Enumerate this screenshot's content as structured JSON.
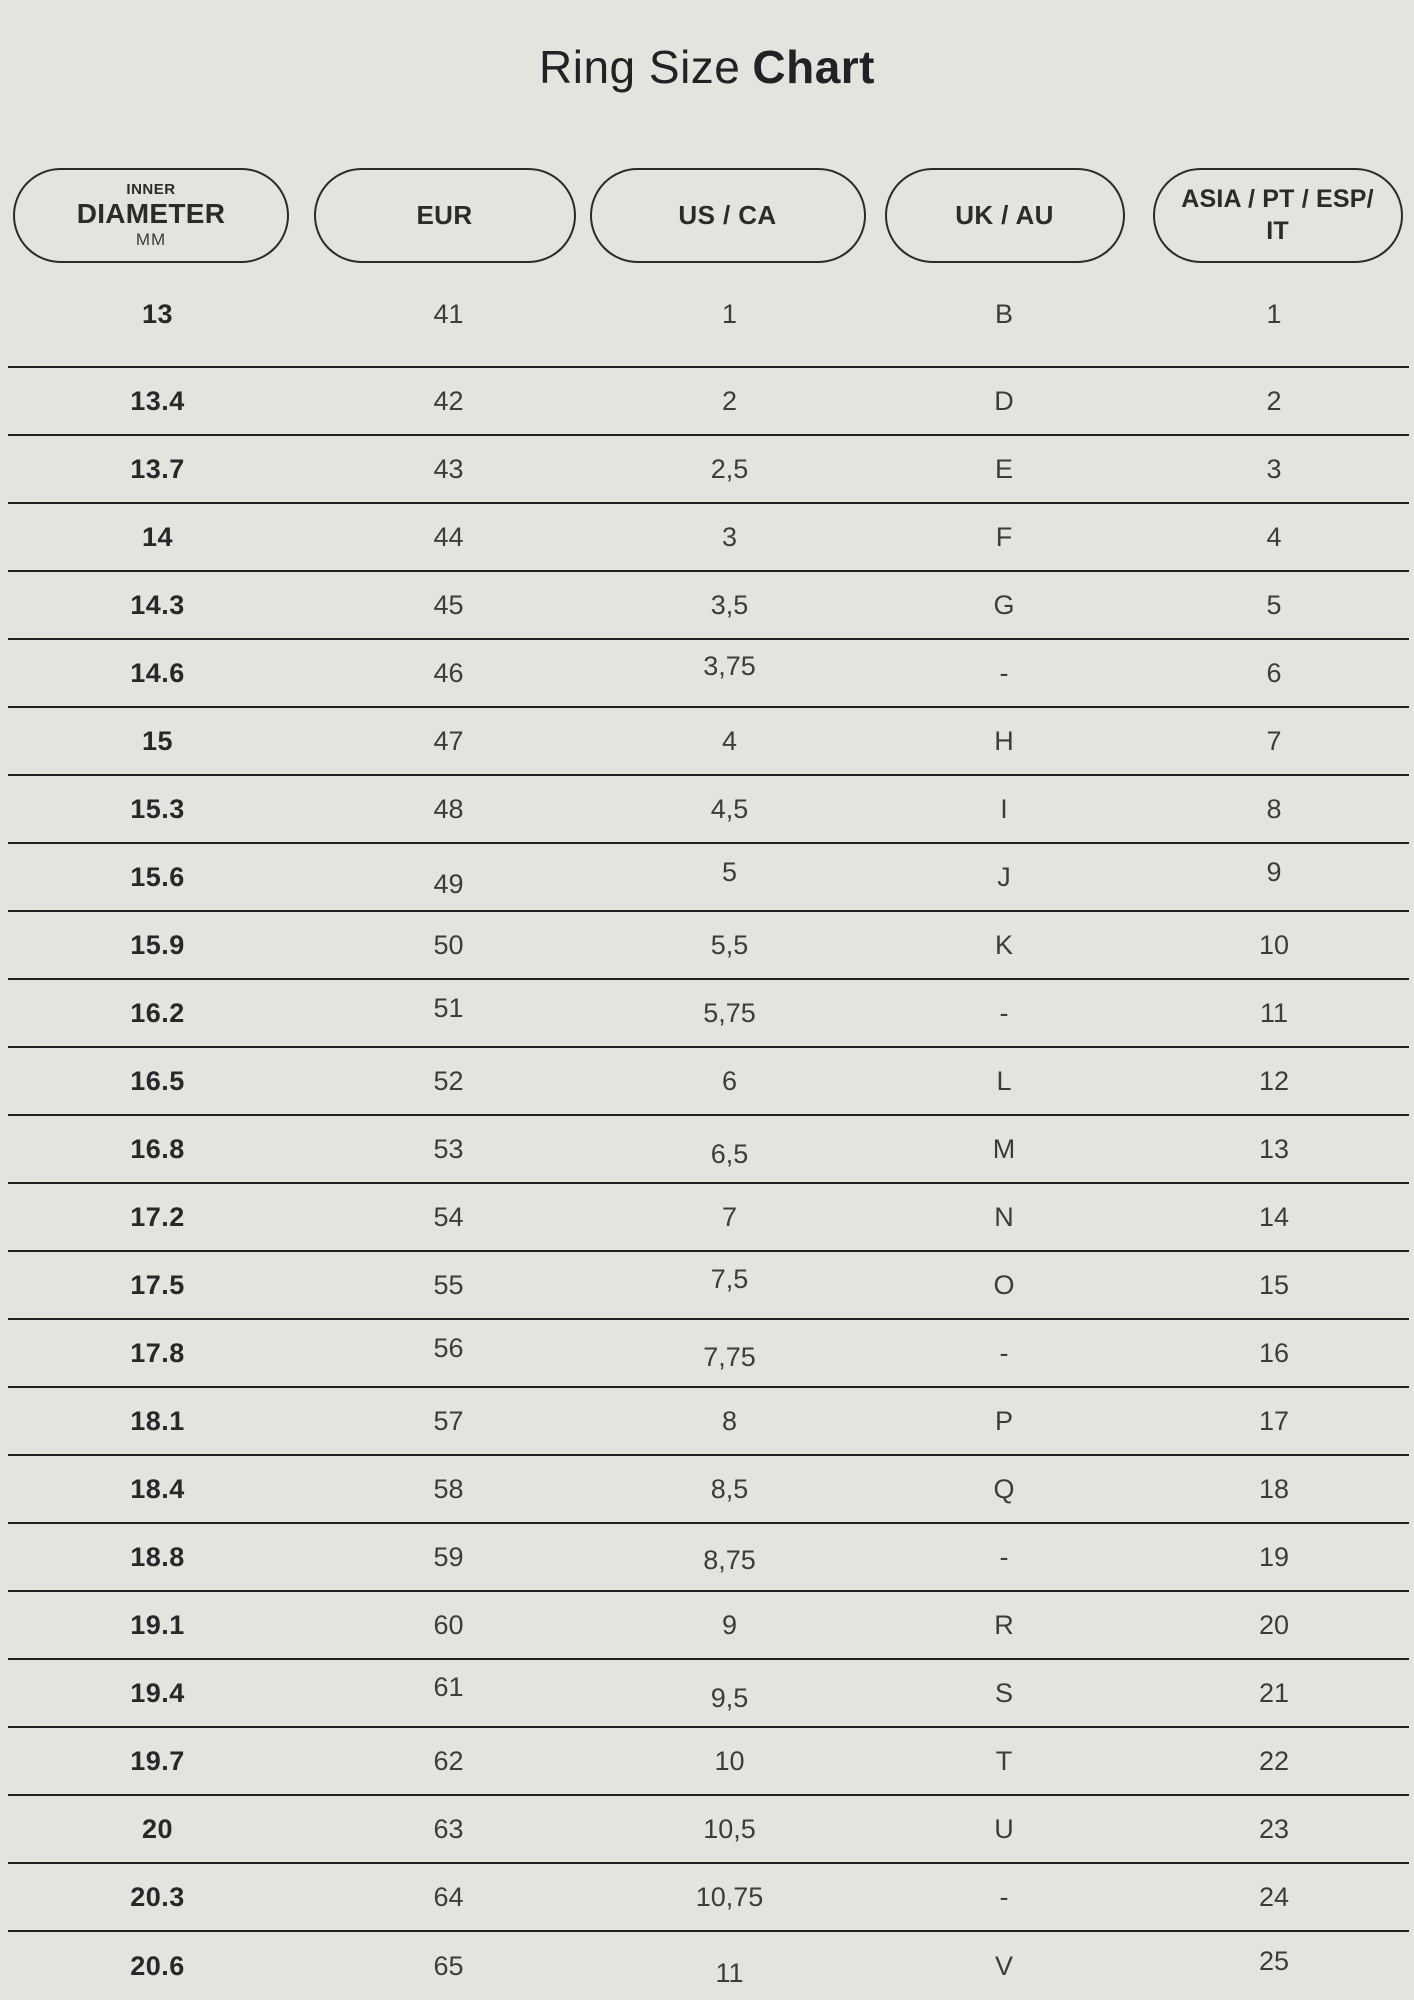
{
  "title": {
    "regular": "Ring Size",
    "bold": "Chart"
  },
  "header": {
    "diameter": {
      "line1": "INNER",
      "line2": "DIAMETER",
      "line3": "MM"
    },
    "eur": "EUR",
    "us_ca": "US / CA",
    "uk_au": "UK / AU",
    "asia_line1": "ASIA / PT / ESP/",
    "asia_line2": "IT"
  },
  "colors": {
    "background": "#e5e3de",
    "text_dark": "#28282a",
    "text_regular": "#3d3c38",
    "line": "#212121",
    "pill_border": "#2b2b28"
  },
  "chart_data": {
    "type": "table",
    "title": "Ring Size Chart",
    "columns": [
      "INNER DIAMETER MM",
      "EUR",
      "US / CA",
      "UK / AU",
      "ASIA / PT / ESP/ IT"
    ],
    "rows": [
      [
        "13",
        "41",
        "1",
        "B",
        "1"
      ],
      [
        "13.4",
        "42",
        "2",
        "D",
        "2"
      ],
      [
        "13.7",
        "43",
        "2,5",
        "E",
        "3"
      ],
      [
        "14",
        "44",
        "3",
        "F",
        "4"
      ],
      [
        "14.3",
        "45",
        "3,5",
        "G",
        "5"
      ],
      [
        "14.6",
        "46",
        "3,75",
        "-",
        "6"
      ],
      [
        "15",
        "47",
        "4",
        "H",
        "7"
      ],
      [
        "15.3",
        "48",
        "4,5",
        "I",
        "8"
      ],
      [
        "15.6",
        "49",
        "5",
        "J",
        "9"
      ],
      [
        "15.9",
        "50",
        "5,5",
        "K",
        "10"
      ],
      [
        "16.2",
        "51",
        "5,75",
        "-",
        "11"
      ],
      [
        "16.5",
        "52",
        "6",
        "L",
        "12"
      ],
      [
        "16.8",
        "53",
        "6,5",
        "M",
        "13"
      ],
      [
        "17.2",
        "54",
        "7",
        "N",
        "14"
      ],
      [
        "17.5",
        "55",
        "7,5",
        "O",
        "15"
      ],
      [
        "17.8",
        "56",
        "7,75",
        "-",
        "16"
      ],
      [
        "18.1",
        "57",
        "8",
        "P",
        "17"
      ],
      [
        "18.4",
        "58",
        "8,5",
        "Q",
        "18"
      ],
      [
        "18.8",
        "59",
        "8,75",
        "-",
        "19"
      ],
      [
        "19.1",
        "60",
        "9",
        "R",
        "20"
      ],
      [
        "19.4",
        "61",
        "9,5",
        "S",
        "21"
      ],
      [
        "19.7",
        "62",
        "10",
        "T",
        "22"
      ],
      [
        "20",
        "63",
        "10,5",
        "U",
        "23"
      ],
      [
        "20.3",
        "64",
        "10,75",
        "-",
        "24"
      ],
      [
        "20.6",
        "65",
        "11",
        "V",
        "25"
      ]
    ]
  }
}
